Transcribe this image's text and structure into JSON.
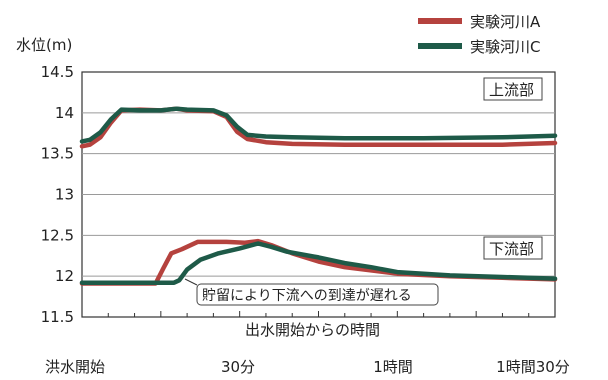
{
  "chart_data": {
    "type": "line",
    "ylabel": "水位(m)",
    "xlabel": "出水開始からの時間",
    "ylim": [
      11.5,
      14.5
    ],
    "yticks": [
      "14.5",
      "14",
      "13.5",
      "13",
      "12.5",
      "12",
      "11.5"
    ],
    "xticks": [
      "洪水開始",
      "30分",
      "1時間",
      "1時間30分"
    ],
    "grid": "horizontal",
    "legend_position": "top-right",
    "series": [
      {
        "name": "実験河川A",
        "color": "#b5423e",
        "segments": [
          {
            "label": "上流部",
            "points": [
              [
                0,
                13.59
              ],
              [
                3,
                13.61
              ],
              [
                7,
                13.7
              ],
              [
                11,
                13.88
              ],
              [
                15,
                14.03
              ],
              [
                22,
                14.04
              ],
              [
                30,
                14.03
              ],
              [
                36,
                14.05
              ],
              [
                40,
                14.03
              ],
              [
                50,
                14.02
              ],
              [
                55,
                13.95
              ],
              [
                59,
                13.77
              ],
              [
                63,
                13.68
              ],
              [
                70,
                13.64
              ],
              [
                80,
                13.62
              ],
              [
                100,
                13.61
              ],
              [
                130,
                13.61
              ],
              [
                160,
                13.61
              ],
              [
                180,
                13.63
              ]
            ]
          },
          {
            "label": "下流部",
            "points": [
              [
                0,
                11.91
              ],
              [
                20,
                11.91
              ],
              [
                28,
                11.91
              ],
              [
                31,
                12.1
              ],
              [
                34,
                12.28
              ],
              [
                38,
                12.33
              ],
              [
                44,
                12.42
              ],
              [
                55,
                12.42
              ],
              [
                62,
                12.41
              ],
              [
                67,
                12.43
              ],
              [
                72,
                12.38
              ],
              [
                80,
                12.28
              ],
              [
                90,
                12.18
              ],
              [
                100,
                12.11
              ],
              [
                110,
                12.07
              ],
              [
                120,
                12.03
              ],
              [
                140,
                12.0
              ],
              [
                160,
                11.98
              ],
              [
                180,
                11.96
              ]
            ]
          }
        ]
      },
      {
        "name": "実験河川C",
        "color": "#1e5a48",
        "segments": [
          {
            "label": "上流部",
            "points": [
              [
                0,
                13.65
              ],
              [
                3,
                13.67
              ],
              [
                7,
                13.76
              ],
              [
                11,
                13.92
              ],
              [
                15,
                14.04
              ],
              [
                22,
                14.03
              ],
              [
                30,
                14.03
              ],
              [
                36,
                14.05
              ],
              [
                40,
                14.04
              ],
              [
                50,
                14.03
              ],
              [
                55,
                13.97
              ],
              [
                59,
                13.83
              ],
              [
                63,
                13.73
              ],
              [
                70,
                13.71
              ],
              [
                80,
                13.7
              ],
              [
                100,
                13.69
              ],
              [
                130,
                13.69
              ],
              [
                160,
                13.7
              ],
              [
                180,
                13.72
              ]
            ]
          },
          {
            "label": "下流部",
            "points": [
              [
                0,
                11.92
              ],
              [
                20,
                11.92
              ],
              [
                35,
                11.92
              ],
              [
                37,
                11.95
              ],
              [
                40,
                12.08
              ],
              [
                45,
                12.2
              ],
              [
                52,
                12.28
              ],
              [
                60,
                12.34
              ],
              [
                67,
                12.4
              ],
              [
                72,
                12.36
              ],
              [
                78,
                12.3
              ],
              [
                90,
                12.23
              ],
              [
                100,
                12.16
              ],
              [
                110,
                12.11
              ],
              [
                120,
                12.05
              ],
              [
                140,
                12.01
              ],
              [
                160,
                11.99
              ],
              [
                180,
                11.97
              ]
            ]
          }
        ]
      }
    ],
    "annotations": {
      "upstream_box": "上流部",
      "downstream_box": "下流部",
      "delay_note": "貯留により下流への到達が遅れる"
    }
  }
}
